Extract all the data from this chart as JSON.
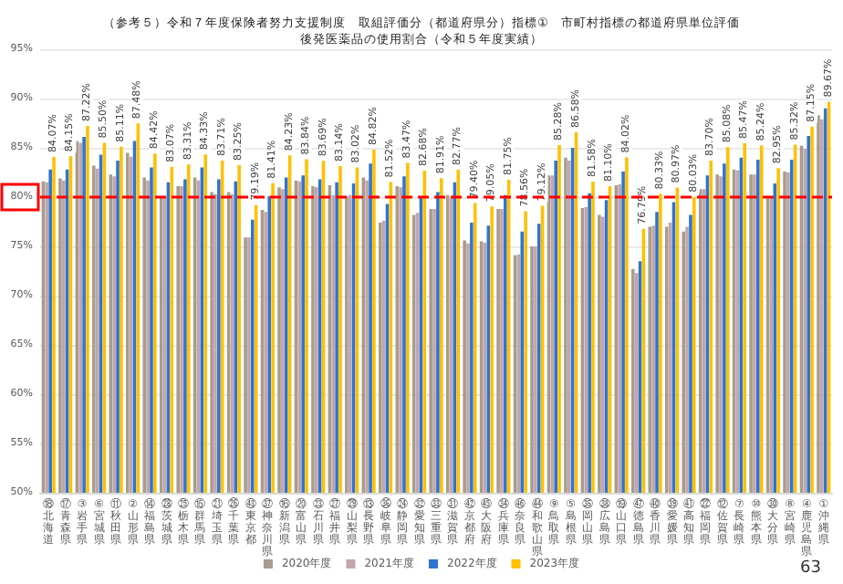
{
  "chart_data": {
    "type": "bar",
    "title": "（参考５）令和７年度保険者努力支援制度　取組評価分（都道府県分）指標①　市町村指標の都道府県単位評価",
    "subtitle": "後発医薬品の使用割合（令和５年度実績）",
    "categories": [
      "⑱北海道",
      "⑰青森県",
      "③岩手県",
      "⑥宮城県",
      "⑪秋田県",
      "②山形県",
      "⑭福島県",
      "㉘茨城県",
      "㉕栃木県",
      "⑮群馬県",
      "㉑埼玉県",
      "㉖千葉県",
      "㊸東京都",
      "㊲神奈川県",
      "⑯新潟県",
      "⑳富山県",
      "㉓石川県",
      "㉗福井県",
      "㉙山梨県",
      "⑬長野県",
      "㊱岐阜県",
      "㉔静岡県",
      "㉜愛知県",
      "㉝三重県",
      "㉛滋賀県",
      "㊷京都府",
      "㊺大阪府",
      "㉞兵庫県",
      "㊻奈良県",
      "㊹和歌山県",
      "⑨鳥取県",
      "⑤島根県",
      "㉟岡山県",
      "㊳広島県",
      "⑲山口県",
      "㊼徳島県",
      "㊵香川県",
      "㊴愛媛県",
      "㊶高知県",
      "㉒福岡県",
      "⑫佐賀県",
      "⑦長崎県",
      "⑩熊本県",
      "㉚大分県",
      "⑧宮崎県",
      "④鹿児島県",
      "①沖縄県"
    ],
    "series": [
      {
        "name": "2020年度",
        "color": "#a89c8f",
        "values": [
          81.6,
          81.9,
          85.7,
          83.2,
          82.3,
          84.5,
          82.0,
          80.1,
          81.1,
          82.0,
          80.5,
          80.5,
          75.9,
          78.7,
          81.0,
          81.7,
          81.1,
          81.2,
          80.1,
          82.0,
          77.4,
          81.1,
          78.2,
          78.8,
          80.2,
          75.6,
          75.5,
          78.8,
          74.1,
          75.0,
          82.2,
          84.0,
          78.9,
          78.2,
          81.2,
          72.7,
          77.0,
          77.0,
          76.5,
          80.8,
          82.3,
          82.8,
          82.3,
          80.1,
          82.6,
          85.2,
          88.3
        ]
      },
      {
        "name": "2021年度",
        "color": "#c2a6aa",
        "values": [
          81.5,
          81.7,
          85.5,
          82.9,
          82.1,
          84.1,
          81.7,
          80.1,
          81.1,
          81.7,
          80.3,
          80.3,
          75.9,
          78.5,
          80.8,
          81.6,
          81.0,
          80.2,
          80.2,
          81.7,
          77.6,
          81.0,
          78.4,
          78.8,
          79.9,
          75.3,
          75.4,
          78.8,
          74.2,
          75.0,
          82.2,
          83.7,
          79.0,
          78.0,
          81.3,
          72.3,
          77.1,
          77.4,
          77.0,
          80.8,
          82.1,
          82.7,
          82.3,
          79.9,
          82.5,
          84.9,
          87.9
        ]
      },
      {
        "name": "2022年度",
        "color": "#2f74d0",
        "values": [
          82.8,
          82.8,
          86.1,
          84.3,
          83.7,
          85.7,
          83.0,
          81.5,
          81.8,
          83.0,
          81.8,
          81.6,
          77.7,
          80.1,
          82.0,
          82.2,
          81.8,
          81.5,
          81.4,
          83.4,
          79.3,
          82.1,
          79.9,
          80.5,
          81.5,
          77.4,
          77.1,
          80.2,
          76.5,
          77.3,
          83.7,
          85.0,
          80.4,
          79.7,
          82.6,
          73.5,
          78.5,
          79.5,
          78.2,
          82.2,
          83.4,
          84.0,
          83.8,
          81.4,
          83.8,
          86.2,
          89.0
        ]
      },
      {
        "name": "2023年度",
        "color": "#ffc000",
        "values": [
          84.07,
          84.15,
          87.22,
          85.5,
          85.11,
          87.48,
          84.42,
          83.07,
          83.31,
          84.33,
          83.71,
          83.25,
          79.19,
          81.41,
          84.23,
          83.84,
          83.69,
          83.14,
          83.02,
          84.82,
          81.52,
          83.47,
          82.68,
          81.91,
          82.77,
          79.4,
          79.05,
          81.75,
          78.56,
          79.12,
          85.28,
          86.58,
          81.58,
          81.1,
          84.02,
          76.79,
          80.33,
          80.97,
          80.03,
          83.7,
          85.08,
          85.47,
          85.24,
          82.95,
          85.32,
          87.15,
          89.67
        ],
        "value_labels": [
          "84.07%",
          "84.15%",
          "87.22%",
          "85.50%",
          "85.11%",
          "87.48%",
          "84.42%",
          "83.07%",
          "83.31%",
          "84.33%",
          "83.71%",
          "83.25%",
          "79.19%",
          "81.41%",
          "84.23%",
          "83.84%",
          "83.69%",
          "83.14%",
          "83.02%",
          "84.82%",
          "81.52%",
          "83.47%",
          "82.68%",
          "81.91%",
          "82.77%",
          "79.40%",
          "79.05%",
          "81.75%",
          "78.56%",
          "79.12%",
          "85.28%",
          "86.58%",
          "81.58%",
          "81.10%",
          "84.02%",
          "76.79%",
          "80.33%",
          "80.97%",
          "80.03%",
          "83.70%",
          "85.08%",
          "85.47%",
          "85.24%",
          "82.95%",
          "85.32%",
          "87.15%",
          "89.67%"
        ]
      }
    ],
    "ylim": [
      50,
      95
    ],
    "yticks": [
      {
        "value": 50,
        "label": "50%"
      },
      {
        "value": 55,
        "label": "55%"
      },
      {
        "value": 60,
        "label": "60%"
      },
      {
        "value": 65,
        "label": "65%"
      },
      {
        "value": 70,
        "label": "70%"
      },
      {
        "value": 75,
        "label": "75%"
      },
      {
        "value": 80,
        "label": "80%"
      },
      {
        "value": 85,
        "label": "85%"
      },
      {
        "value": 90,
        "label": "90%"
      },
      {
        "value": 95,
        "label": "95%"
      }
    ],
    "grid": "y",
    "legend": "bottom",
    "ref_lines": [
      {
        "axis": "y",
        "value": 80,
        "label": null,
        "color": "#ff0000",
        "line_style": "dashed"
      }
    ],
    "annotations": [
      "63"
    ]
  }
}
